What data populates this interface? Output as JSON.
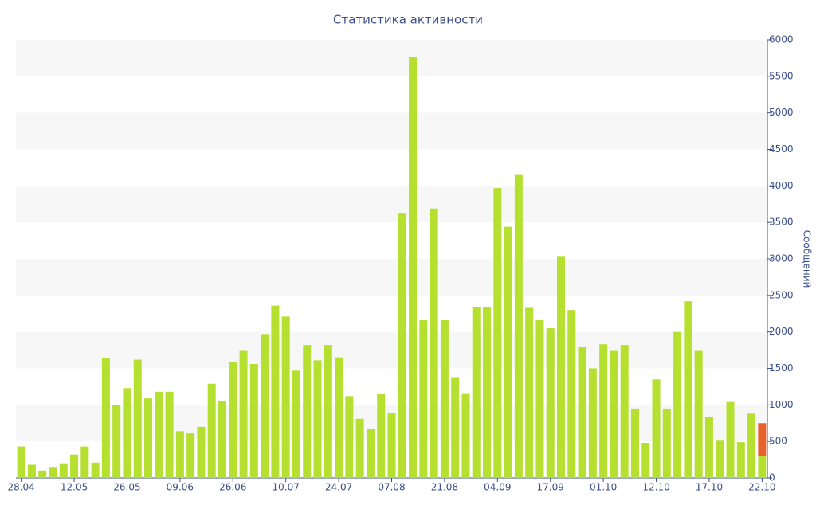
{
  "chart_data": {
    "type": "bar",
    "title": "Статистика активности",
    "y_label": "Сообщений",
    "categories": [
      "28.04",
      null,
      null,
      null,
      null,
      "12.05",
      null,
      null,
      null,
      null,
      "26.05",
      null,
      null,
      null,
      null,
      "09.06",
      null,
      null,
      null,
      null,
      "26.06",
      null,
      null,
      null,
      null,
      "10.07",
      null,
      null,
      null,
      null,
      "24.07",
      null,
      null,
      null,
      null,
      "07.08",
      null,
      null,
      null,
      null,
      "21.08",
      null,
      null,
      null,
      null,
      "04.09",
      null,
      null,
      null,
      null,
      "17.09",
      null,
      null,
      null,
      null,
      "01.10",
      null,
      null,
      null,
      null,
      "12.10",
      null,
      null,
      null,
      null,
      "17.10",
      null,
      null,
      null,
      null,
      "22.10"
    ],
    "series": [
      {
        "color": "#b5e02f",
        "values": [
          430,
          180,
          100,
          150,
          200,
          320,
          430,
          210,
          1640,
          1000,
          1230,
          1620,
          1090,
          1180,
          1180,
          640,
          610,
          700,
          1290,
          1050,
          1590,
          1740,
          1560,
          1970,
          2360,
          2210,
          1470,
          1820,
          1610,
          1820,
          1650,
          1120,
          810,
          670,
          1150,
          890,
          3620,
          5760,
          2160,
          3690,
          2160,
          1380,
          1160,
          2340,
          2340,
          3970,
          3440,
          4150,
          2330,
          2160,
          2050,
          3040,
          2300,
          1790,
          1500,
          1830,
          1740,
          1820,
          950,
          480,
          1350,
          950,
          2000,
          2420,
          1740,
          830,
          520,
          1040,
          490,
          880,
          300
        ]
      },
      {
        "color": "#e8602c",
        "values": [
          null,
          null,
          null,
          null,
          null,
          null,
          null,
          null,
          null,
          null,
          null,
          null,
          null,
          null,
          null,
          null,
          null,
          null,
          null,
          null,
          null,
          null,
          null,
          null,
          null,
          null,
          null,
          null,
          null,
          null,
          null,
          null,
          null,
          null,
          null,
          null,
          null,
          null,
          null,
          null,
          null,
          null,
          null,
          null,
          null,
          null,
          null,
          null,
          null,
          null,
          null,
          null,
          null,
          null,
          null,
          null,
          null,
          null,
          null,
          null,
          null,
          null,
          null,
          null,
          null,
          null,
          null,
          null,
          null,
          null,
          450
        ]
      }
    ],
    "ylim": [
      0,
      6000
    ],
    "yticks": [
      0,
      500,
      1000,
      1500,
      2000,
      2500,
      3000,
      3500,
      4000,
      4500,
      5000,
      5500,
      6000
    ],
    "y_axis_side": "right",
    "stacked": true,
    "bands": true
  }
}
